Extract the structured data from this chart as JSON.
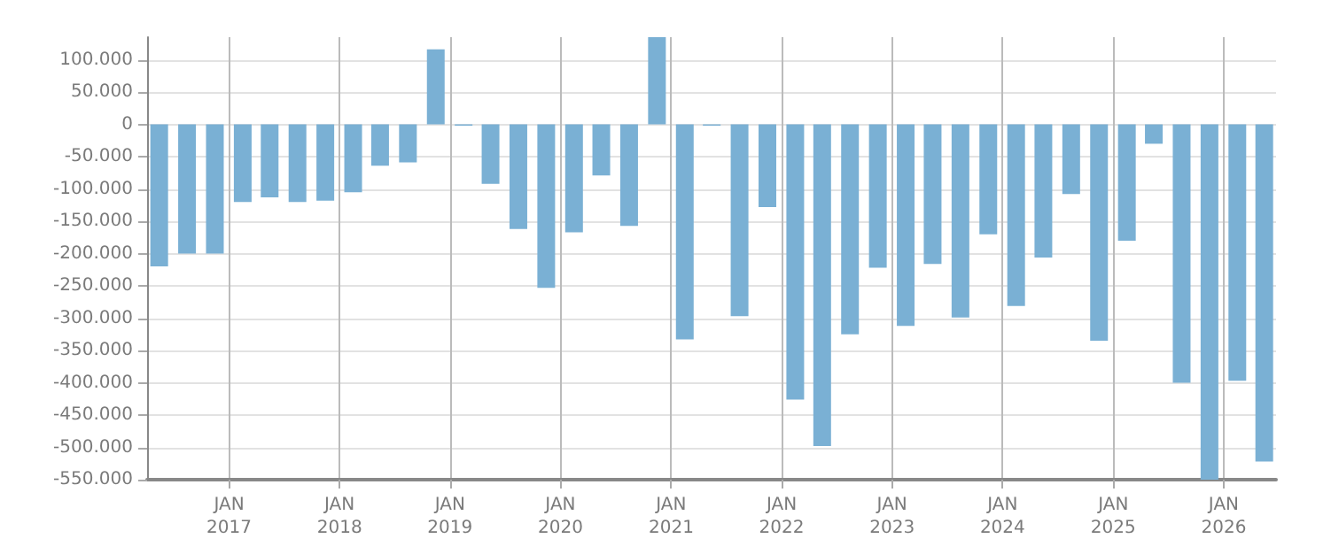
{
  "chart_data": {
    "type": "bar",
    "x": [
      "2016-05-15",
      "2016-08-15",
      "2016-11-15",
      "2017-02-15",
      "2017-05-15",
      "2017-08-15",
      "2017-11-15",
      "2018-02-15",
      "2018-05-15",
      "2018-08-15",
      "2018-11-15",
      "2019-02-15",
      "2019-05-15",
      "2019-08-15",
      "2019-11-15",
      "2020-02-15",
      "2020-05-15",
      "2020-08-15",
      "2020-11-15",
      "2021-02-15",
      "2021-05-15",
      "2021-08-15",
      "2021-11-15",
      "2022-02-15",
      "2022-05-15",
      "2022-08-15",
      "2022-11-15",
      "2023-02-15",
      "2023-05-15",
      "2023-08-15",
      "2023-11-15",
      "2024-02-15",
      "2024-05-15",
      "2024-08-15",
      "2024-11-15",
      "2025-02-15",
      "2025-05-15",
      "2025-08-15",
      "2025-11-15",
      "2026-02-15",
      "2026-05-15"
    ],
    "values": [
      -220000,
      -200000,
      -200000,
      -120000,
      -113000,
      -120000,
      -118000,
      -105000,
      -64000,
      -59000,
      116000,
      -2000,
      -92000,
      -162000,
      -253000,
      -167000,
      -79000,
      -157000,
      135000,
      -333000,
      -2000,
      -297000,
      -128000,
      -426000,
      -498000,
      -325000,
      -222000,
      -312000,
      -216000,
      -299000,
      -170000,
      -281000,
      -206000,
      -108000,
      -335000,
      -180000,
      -30000,
      -400000,
      -550000,
      -397000,
      -522000
    ],
    "color": "#7ab0d4",
    "xlim": [
      "2016-04-05",
      "2026-06-23"
    ],
    "xticks": [
      {
        "value": "2017-01-01",
        "label": "JAN\n2017"
      },
      {
        "value": "2018-01-01",
        "label": "JAN\n2018"
      },
      {
        "value": "2019-01-01",
        "label": "JAN\n2019"
      },
      {
        "value": "2020-01-01",
        "label": "JAN\n2020"
      },
      {
        "value": "2021-01-01",
        "label": "JAN\n2021"
      },
      {
        "value": "2022-01-01",
        "label": "JAN\n2022"
      },
      {
        "value": "2023-01-01",
        "label": "JAN\n2023"
      },
      {
        "value": "2024-01-01",
        "label": "JAN\n2024"
      },
      {
        "value": "2025-01-01",
        "label": "JAN\n2025"
      },
      {
        "value": "2026-01-01",
        "label": "JAN\n2026"
      }
    ],
    "ylim": [
      -550000,
      135000
    ],
    "yticks": [
      {
        "value": -550000,
        "label": "-550.000"
      },
      {
        "value": -500000,
        "label": "-500.000"
      },
      {
        "value": -450000,
        "label": "-450.000"
      },
      {
        "value": -400000,
        "label": "-400.000"
      },
      {
        "value": -350000,
        "label": "-350.000"
      },
      {
        "value": -300000,
        "label": "-300.000"
      },
      {
        "value": -250000,
        "label": "-250.000"
      },
      {
        "value": -200000,
        "label": "-200.000"
      },
      {
        "value": -150000,
        "label": "-150.000"
      },
      {
        "value": -100000,
        "label": "-100.000"
      },
      {
        "value": -50000,
        "label": "-50.000"
      },
      {
        "value": 0,
        "label": "0"
      },
      {
        "value": 50000,
        "label": "50.000"
      },
      {
        "value": 100000,
        "label": "100.000"
      }
    ],
    "grid": true
  }
}
